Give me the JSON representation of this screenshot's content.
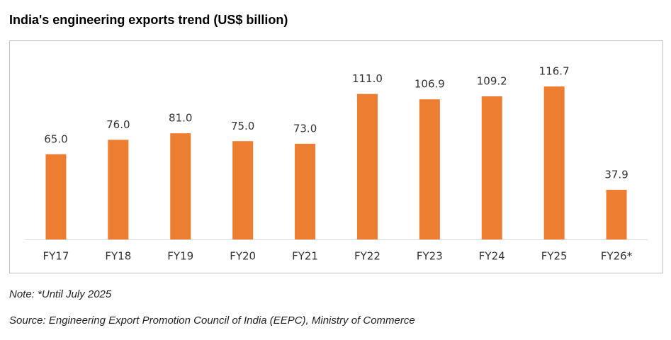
{
  "chart_data": {
    "type": "bar",
    "title": "India's engineering exports trend (US$ billion)",
    "categories": [
      "FY17",
      "FY18",
      "FY19",
      "FY20",
      "FY21",
      "FY22",
      "FY23",
      "FY24",
      "FY25",
      "FY26*"
    ],
    "values": [
      65,
      76,
      81,
      75,
      73,
      111,
      106.9,
      109.2,
      116.7,
      37.9
    ],
    "value_labels": [
      "65.0",
      "76.0",
      "81.0",
      "75.0",
      "73.0",
      "111.0",
      "106.9",
      "109.2",
      "116.7",
      "37.9"
    ],
    "color": "#ed7d31",
    "note": "Note: *Until July 2025",
    "source": "Source: Engineering Export Promotion Council of India (EEPC), Ministry of Commerce"
  }
}
